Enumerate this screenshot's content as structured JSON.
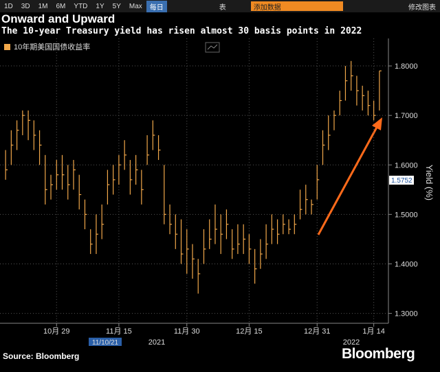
{
  "toolbar": {
    "buttons": [
      "1D",
      "3D",
      "1M",
      "6M",
      "YTD",
      "1Y",
      "5Y",
      "Max"
    ],
    "frequency": "每日",
    "table": "表",
    "add_data": "添加数据",
    "edit_chart": "修改图表"
  },
  "chart_data": {
    "type": "ohlc",
    "title": "Onward and Upward",
    "subtitle": "The 10-year Treasury yield has risen almost 30 basis points in 2022",
    "legend_label": "10年期美国国债收益率",
    "y_label": "Yield (%)",
    "last_value_label": "1.5752",
    "cursor_date_label": "11/10/21",
    "year_labels": [
      "2021",
      "2022"
    ],
    "source": "Source: Bloomberg",
    "brand": "Bloomberg",
    "color": "#f2a84a",
    "grid": true,
    "categories": [
      null,
      null,
      null,
      null,
      null,
      null,
      null,
      null,
      null,
      "10月 29",
      null,
      null,
      null,
      null,
      null,
      null,
      null,
      null,
      null,
      null,
      "11月 15",
      null,
      null,
      null,
      null,
      null,
      null,
      null,
      null,
      null,
      null,
      null,
      "11月 30",
      null,
      null,
      null,
      null,
      null,
      null,
      null,
      null,
      null,
      null,
      "12月 15",
      null,
      null,
      null,
      null,
      null,
      null,
      null,
      null,
      null,
      null,
      null,
      "12月 31",
      null,
      null,
      null,
      null,
      null,
      null,
      null,
      null,
      null,
      "1月 14",
      null
    ],
    "high": [
      1.63,
      1.67,
      1.69,
      1.71,
      1.71,
      1.69,
      1.67,
      1.62,
      1.58,
      1.61,
      1.62,
      1.6,
      1.61,
      1.58,
      1.53,
      1.47,
      1.5,
      1.52,
      1.59,
      1.6,
      1.62,
      1.65,
      1.61,
      1.62,
      1.59,
      1.66,
      1.69,
      1.66,
      1.6,
      1.52,
      1.5,
      1.49,
      1.47,
      1.44,
      1.41,
      1.47,
      1.49,
      1.52,
      1.5,
      1.51,
      1.47,
      1.48,
      1.48,
      1.46,
      1.43,
      1.45,
      1.48,
      1.5,
      1.49,
      1.5,
      1.49,
      1.5,
      1.55,
      1.56,
      1.53,
      1.6,
      1.67,
      1.7,
      1.71,
      1.75,
      1.8,
      1.81,
      1.78,
      1.76,
      1.75,
      1.73,
      1.79
    ],
    "low": [
      1.57,
      1.6,
      1.63,
      1.66,
      1.65,
      1.63,
      1.6,
      1.52,
      1.53,
      1.55,
      1.55,
      1.53,
      1.55,
      1.51,
      1.47,
      1.42,
      1.42,
      1.45,
      1.52,
      1.54,
      1.56,
      1.59,
      1.54,
      1.56,
      1.52,
      1.6,
      1.63,
      1.61,
      1.48,
      1.46,
      1.43,
      1.4,
      1.38,
      1.37,
      1.34,
      1.4,
      1.43,
      1.44,
      1.42,
      1.45,
      1.41,
      1.42,
      1.42,
      1.4,
      1.36,
      1.39,
      1.41,
      1.44,
      1.44,
      1.46,
      1.46,
      1.46,
      1.49,
      1.5,
      1.5,
      1.53,
      1.6,
      1.63,
      1.67,
      1.7,
      1.73,
      1.75,
      1.72,
      1.71,
      1.7,
      1.69,
      1.71
    ],
    "close": [
      1.59,
      1.64,
      1.67,
      1.7,
      1.69,
      1.66,
      1.64,
      1.55,
      1.56,
      1.58,
      1.58,
      1.56,
      1.59,
      1.54,
      1.5,
      1.44,
      1.46,
      1.48,
      1.56,
      1.57,
      1.6,
      1.62,
      1.57,
      1.59,
      1.55,
      1.62,
      1.66,
      1.63,
      1.5,
      1.48,
      1.46,
      1.42,
      1.43,
      1.41,
      1.38,
      1.43,
      1.45,
      1.47,
      1.46,
      1.48,
      1.43,
      1.44,
      1.45,
      1.43,
      1.39,
      1.42,
      1.44,
      1.47,
      1.46,
      1.48,
      1.47,
      1.48,
      1.51,
      1.53,
      1.52,
      1.57,
      1.64,
      1.66,
      1.7,
      1.73,
      1.77,
      1.78,
      1.75,
      1.74,
      1.72,
      1.7,
      1.79
    ],
    "ylim": [
      1.28,
      1.85
    ],
    "yticks": [
      {
        "value": 1.3,
        "label": "1.3000"
      },
      {
        "value": 1.4,
        "label": "1.4000"
      },
      {
        "value": 1.5,
        "label": "1.5000"
      },
      {
        "value": 1.6,
        "label": "1.6000"
      },
      {
        "value": 1.7,
        "label": "1.7000"
      },
      {
        "value": 1.8,
        "label": "1.8000"
      }
    ]
  }
}
